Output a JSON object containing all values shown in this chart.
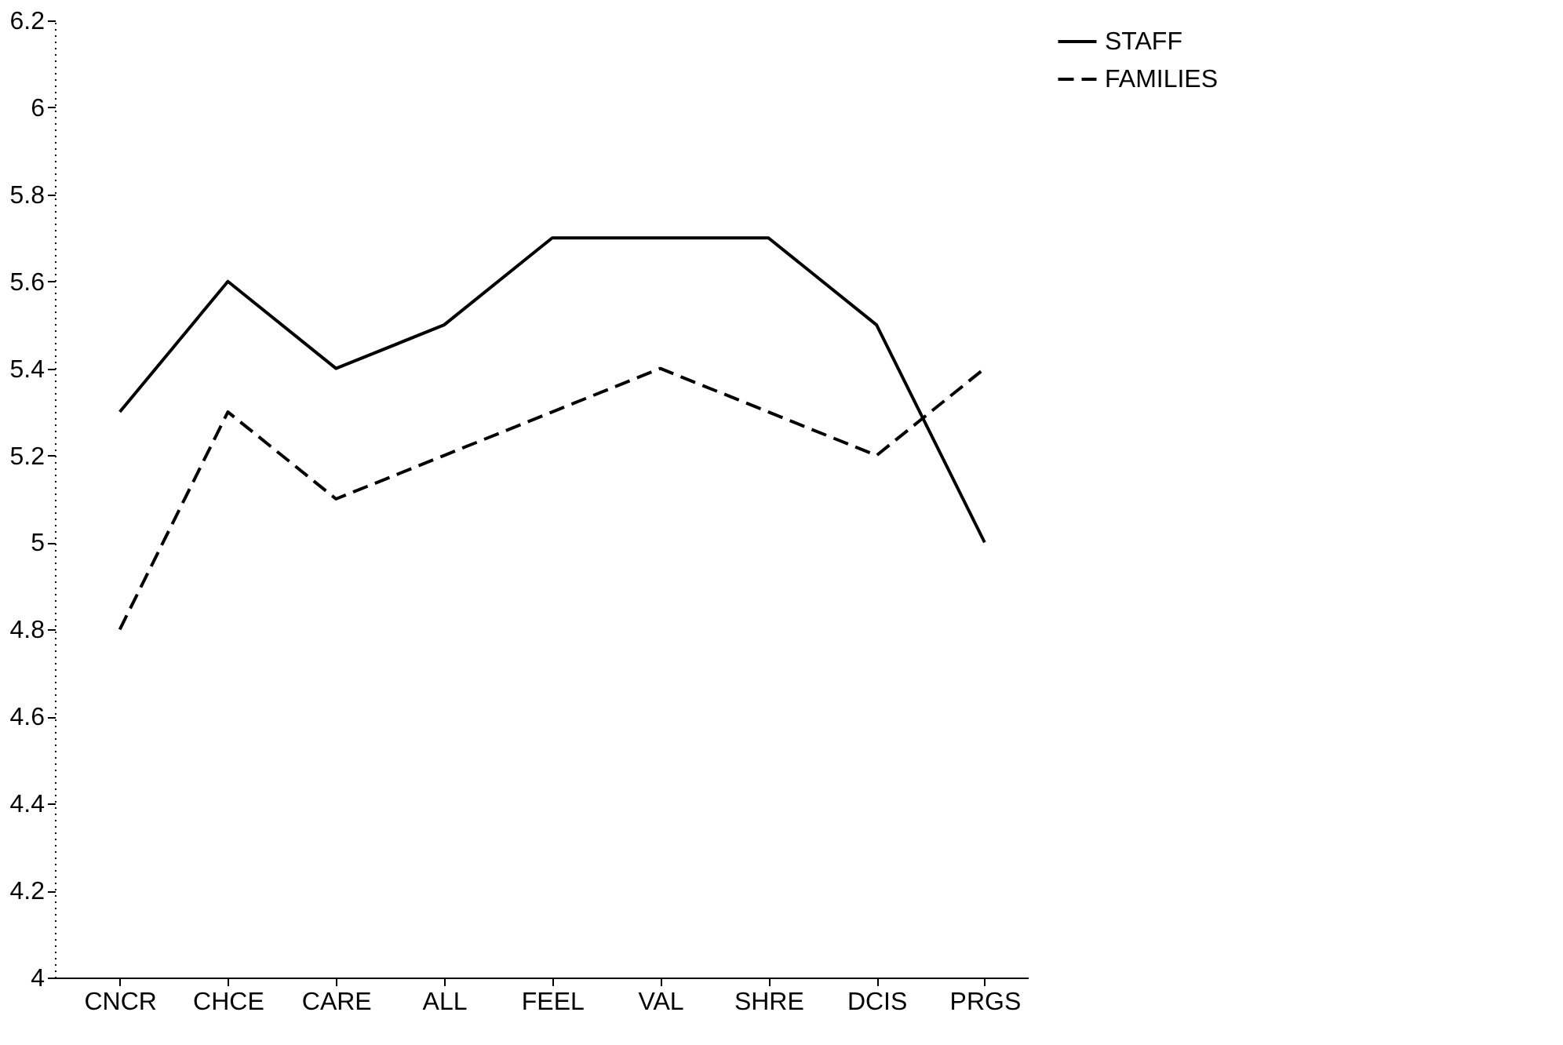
{
  "chart_data": {
    "type": "line",
    "categories": [
      "CNCR",
      "CHCE",
      "CARE",
      "ALL",
      "FEEL",
      "VAL",
      "SHRE",
      "DCIS",
      "PRGS"
    ],
    "series": [
      {
        "name": "STAFF",
        "color": "#000000",
        "line_style": "solid",
        "values": [
          5.3,
          5.6,
          5.4,
          5.5,
          5.7,
          5.7,
          5.7,
          5.5,
          5.0
        ]
      },
      {
        "name": "FAMILIES",
        "color": "#000000",
        "line_style": "dashed",
        "values": [
          4.8,
          5.3,
          5.1,
          5.2,
          5.3,
          5.4,
          5.3,
          5.2,
          5.4
        ]
      }
    ],
    "ylim": [
      4,
      6.2
    ],
    "yticks": [
      4,
      4.2,
      4.4,
      4.6,
      4.8,
      5,
      5.2,
      5.4,
      5.6,
      5.8,
      6,
      6.2
    ],
    "grid": false,
    "legend": "right",
    "marker": "none"
  }
}
